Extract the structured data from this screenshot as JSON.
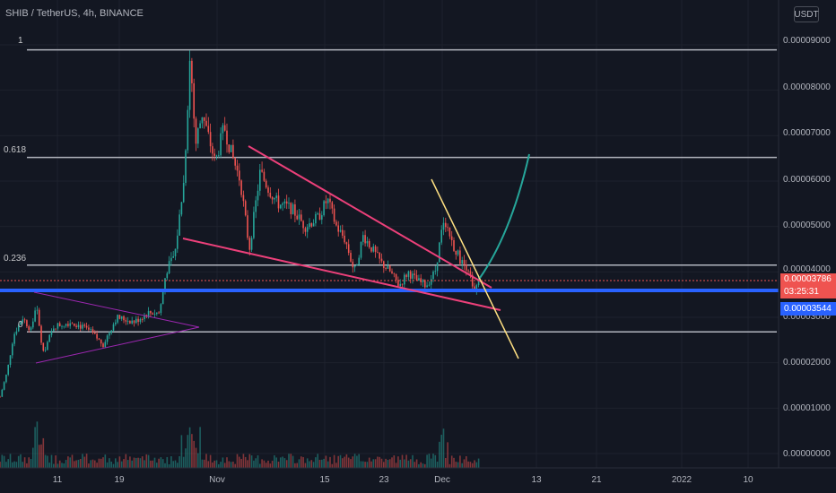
{
  "header": {
    "title": "SHIB / TetherUS, 4h, BINANCE",
    "currency": "USDT"
  },
  "colors": {
    "background": "#131722",
    "up": "#26a69a",
    "down": "#ef5350",
    "pink": "#ec407a",
    "purple": "#9c27b0",
    "blue": "#2962ff",
    "yellow": "#ffe082",
    "teal": "#26a69a",
    "fib": "#b2b5be"
  },
  "chart_data": {
    "type": "candlestick",
    "symbol": "SHIB / TetherUS",
    "interval": "4h",
    "exchange": "BINANCE",
    "ylim": [
      0.0,
      9.5e-06
    ],
    "y_ticks": [
      "0.00009000",
      "0.00008000",
      "0.00007000",
      "0.00006000",
      "0.00005000",
      "0.00004000",
      "0.00003000",
      "0.00002000",
      "0.00001000",
      "0.00000000"
    ],
    "x_ticks": [
      "11",
      "19",
      "Nov",
      "15",
      "23",
      "Dec",
      "13",
      "21",
      "2022",
      "10"
    ],
    "fib_levels": [
      {
        "label": "1",
        "value": 8.89e-05
      },
      {
        "label": "0.618",
        "value": 6.52e-05
      },
      {
        "label": "0.236",
        "value": 4.15e-05
      },
      {
        "label": "0",
        "value": 2.68e-05
      }
    ],
    "last_price": {
      "value": "0.00003786",
      "countdown": "03:25:31"
    },
    "level_line": {
      "value": "0.00003544"
    },
    "price_path": [
      [
        0,
        1.25e-05
      ],
      [
        8,
        1.8e-05
      ],
      [
        15,
        2.6e-05
      ],
      [
        25,
        3e-05
      ],
      [
        35,
        2.7e-05
      ],
      [
        40,
        3.3e-05
      ],
      [
        48,
        2.2e-05
      ],
      [
        60,
        2.8e-05
      ],
      [
        80,
        2.9e-05
      ],
      [
        100,
        2.7e-05
      ],
      [
        115,
        2.4e-05
      ],
      [
        130,
        3e-05
      ],
      [
        150,
        2.9e-05
      ],
      [
        165,
        3.1e-05
      ],
      [
        178,
        3.1e-05
      ],
      [
        185,
        4e-05
      ],
      [
        195,
        4.4e-05
      ],
      [
        205,
        6e-05
      ],
      [
        212,
        8.8e-05
      ],
      [
        218,
        6.8e-05
      ],
      [
        225,
        7.5e-05
      ],
      [
        232,
        7e-05
      ],
      [
        240,
        6.4e-05
      ],
      [
        250,
        7.2e-05
      ],
      [
        258,
        6.6e-05
      ],
      [
        268,
        6e-05
      ],
      [
        278,
        4.5e-05
      ],
      [
        290,
        6.2e-05
      ],
      [
        300,
        5.8e-05
      ],
      [
        310,
        5.5e-05
      ],
      [
        325,
        5.4e-05
      ],
      [
        340,
        5e-05
      ],
      [
        355,
        5.2e-05
      ],
      [
        365,
        5.6e-05
      ],
      [
        375,
        5e-05
      ],
      [
        385,
        4.7e-05
      ],
      [
        395,
        4e-05
      ],
      [
        405,
        4.8e-05
      ],
      [
        415,
        4.5e-05
      ],
      [
        425,
        4.2e-05
      ],
      [
        435,
        4e-05
      ],
      [
        445,
        3.7e-05
      ],
      [
        455,
        4e-05
      ],
      [
        465,
        3.8e-05
      ],
      [
        475,
        3.7e-05
      ],
      [
        485,
        4e-05
      ],
      [
        495,
        5.2e-05
      ],
      [
        505,
        4.6e-05
      ],
      [
        515,
        4.2e-05
      ],
      [
        522,
        4.1e-05
      ],
      [
        528,
        3.5e-05
      ],
      [
        534,
        3.78e-05
      ]
    ]
  }
}
